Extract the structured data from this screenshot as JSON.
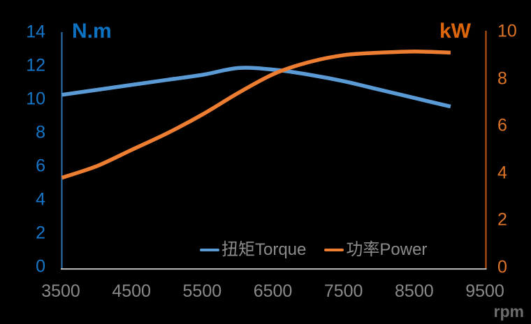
{
  "colors": {
    "background": "#000000",
    "torque_line": "#5B9BD5",
    "power_line": "#ED7D31",
    "left_axis_line": "#2E75B6",
    "right_axis_line": "#C55A11",
    "bottom_axis_line": "#C9C9C9",
    "left_tick_label": "#1577C9",
    "left_axis_title": "#0E72C3",
    "right_tick_label": "#DD7427",
    "right_axis_title": "#DD660D",
    "x_tick_label": "#8A8A8A",
    "legend_text": "#8C8C8C",
    "rpm_label": "#6E6E6E"
  },
  "chart_data": {
    "type": "line",
    "title": "",
    "grid": false,
    "x": [
      3500,
      4000,
      4500,
      5000,
      5500,
      6000,
      6500,
      7000,
      7500,
      8000,
      8500,
      9000
    ],
    "series": [
      {
        "name": "扭矩Torque",
        "yaxis": "left",
        "unit": "N.m",
        "color": "#5B9BD5",
        "values": [
          10.3,
          10.6,
          10.9,
          11.2,
          11.5,
          11.9,
          11.8,
          11.5,
          11.1,
          10.6,
          10.1,
          9.6
        ]
      },
      {
        "name": "功率Power",
        "yaxis": "right",
        "unit": "kW",
        "color": "#ED7D31",
        "values": [
          3.8,
          4.3,
          5.0,
          5.7,
          6.5,
          7.4,
          8.2,
          8.7,
          9.0,
          9.1,
          9.15,
          9.1
        ]
      }
    ],
    "left_axis": {
      "title": "N.m",
      "min": 0,
      "max": 14,
      "step": 2,
      "ticks": [
        14,
        12,
        10,
        8,
        6,
        4,
        2,
        0
      ]
    },
    "right_axis": {
      "title": "kW",
      "min": 0,
      "max": 10,
      "step": 2,
      "ticks": [
        10,
        8,
        6,
        4,
        2,
        0
      ]
    },
    "x_axis": {
      "title": "rpm",
      "min": 3500,
      "max": 9500,
      "step": 1000,
      "ticks": [
        3500,
        4500,
        5500,
        6500,
        7500,
        8500,
        9500
      ]
    },
    "legend": {
      "position": "bottom-inside",
      "entries": [
        "扭矩Torque",
        "功率Power"
      ]
    }
  }
}
